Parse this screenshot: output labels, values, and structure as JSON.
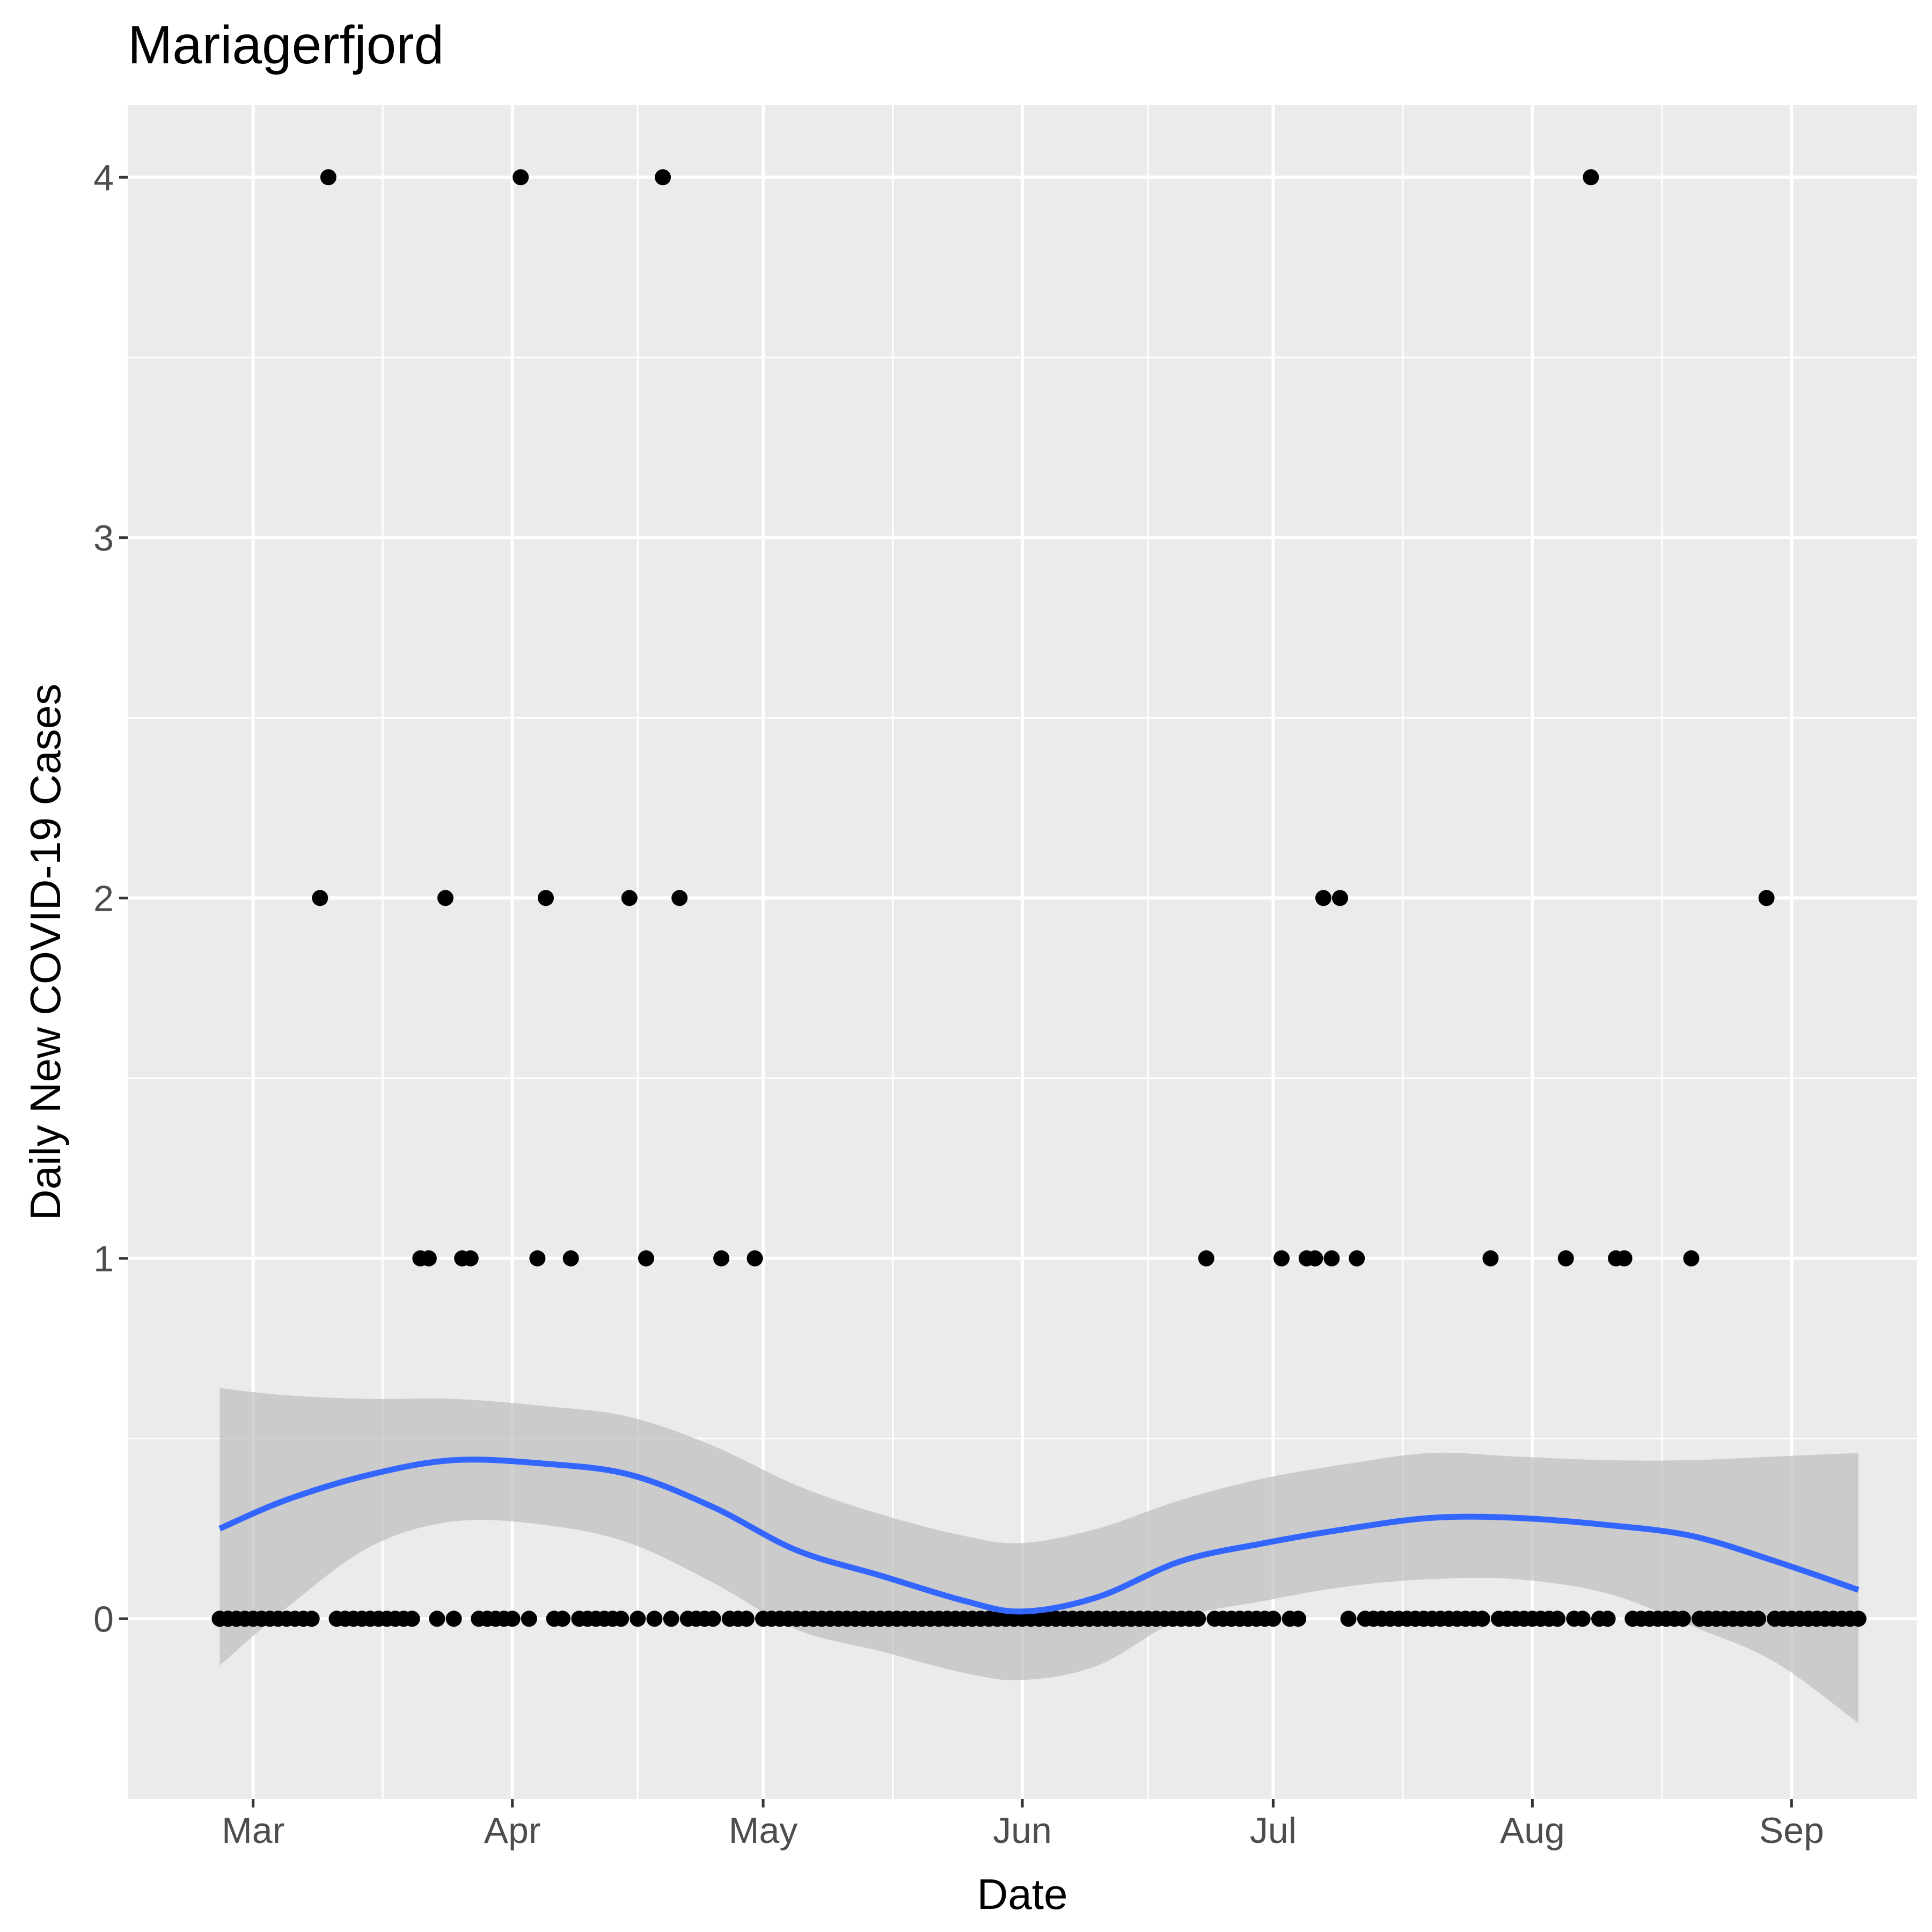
{
  "chart_data": {
    "type": "scatter",
    "title": "Mariagerfjord",
    "xlabel": "Date",
    "ylabel": "Daily New COVID-19 Cases",
    "x_ticks": [
      "Mar",
      "Apr",
      "May",
      "Jun",
      "Jul",
      "Aug",
      "Sep"
    ],
    "x_tick_dates": [
      "2020-03-01",
      "2020-04-01",
      "2020-05-01",
      "2020-06-01",
      "2020-07-01",
      "2020-08-01",
      "2020-09-01"
    ],
    "y_ticks": [
      "0",
      "1",
      "2",
      "3",
      "4"
    ],
    "y_tick_values": [
      0,
      1,
      2,
      3,
      4
    ],
    "xlim": [
      "2020-02-15",
      "2020-09-16"
    ],
    "ylim": [
      -0.5,
      4.2
    ],
    "grid": true,
    "point_color": "#000000",
    "smooth_color": "#3366ff",
    "ribbon_color": "#bebebe",
    "panel_color": "#ebebeb",
    "points_nonzero": [
      {
        "x": "2020-03-09",
        "y": 2
      },
      {
        "x": "2020-03-10",
        "y": 4
      },
      {
        "x": "2020-03-21",
        "y": 1
      },
      {
        "x": "2020-03-22",
        "y": 1
      },
      {
        "x": "2020-03-24",
        "y": 2
      },
      {
        "x": "2020-03-26",
        "y": 1
      },
      {
        "x": "2020-03-27",
        "y": 1
      },
      {
        "x": "2020-04-02",
        "y": 4
      },
      {
        "x": "2020-04-04",
        "y": 1
      },
      {
        "x": "2020-04-05",
        "y": 2
      },
      {
        "x": "2020-04-08",
        "y": 1
      },
      {
        "x": "2020-04-15",
        "y": 2
      },
      {
        "x": "2020-04-17",
        "y": 1
      },
      {
        "x": "2020-04-19",
        "y": 4
      },
      {
        "x": "2020-04-21",
        "y": 2
      },
      {
        "x": "2020-04-26",
        "y": 1
      },
      {
        "x": "2020-04-30",
        "y": 1
      },
      {
        "x": "2020-06-23",
        "y": 1
      },
      {
        "x": "2020-07-02",
        "y": 1
      },
      {
        "x": "2020-07-05",
        "y": 1
      },
      {
        "x": "2020-07-06",
        "y": 1
      },
      {
        "x": "2020-07-07",
        "y": 2
      },
      {
        "x": "2020-07-08",
        "y": 1
      },
      {
        "x": "2020-07-09",
        "y": 2
      },
      {
        "x": "2020-07-11",
        "y": 1
      },
      {
        "x": "2020-07-27",
        "y": 1
      },
      {
        "x": "2020-08-05",
        "y": 1
      },
      {
        "x": "2020-08-08",
        "y": 4
      },
      {
        "x": "2020-08-11",
        "y": 1
      },
      {
        "x": "2020-08-12",
        "y": 1
      },
      {
        "x": "2020-08-20",
        "y": 1
      },
      {
        "x": "2020-08-29",
        "y": 2
      }
    ],
    "zero_range": [
      "2020-02-26",
      "2020-09-09"
    ],
    "smooth": {
      "x": [
        "2020-02-26",
        "2020-03-05",
        "2020-03-15",
        "2020-03-25",
        "2020-04-05",
        "2020-04-15",
        "2020-04-25",
        "2020-05-05",
        "2020-05-15",
        "2020-05-25",
        "2020-06-01",
        "2020-06-10",
        "2020-06-20",
        "2020-06-30",
        "2020-07-10",
        "2020-07-20",
        "2020-07-30",
        "2020-08-10",
        "2020-08-20",
        "2020-08-30",
        "2020-09-09"
      ],
      "y": [
        0.25,
        0.33,
        0.4,
        0.44,
        0.43,
        0.4,
        0.31,
        0.19,
        0.12,
        0.05,
        0.02,
        0.06,
        0.16,
        0.21,
        0.25,
        0.28,
        0.28,
        0.26,
        0.23,
        0.16,
        0.08
      ],
      "lower": [
        -0.13,
        0.03,
        0.2,
        0.27,
        0.26,
        0.21,
        0.1,
        -0.03,
        -0.09,
        -0.15,
        -0.17,
        -0.13,
        0.0,
        0.05,
        0.09,
        0.11,
        0.11,
        0.07,
        -0.02,
        -0.12,
        -0.29
      ],
      "upper": [
        0.64,
        0.62,
        0.61,
        0.61,
        0.59,
        0.56,
        0.48,
        0.37,
        0.29,
        0.23,
        0.21,
        0.25,
        0.33,
        0.39,
        0.43,
        0.46,
        0.45,
        0.44,
        0.44,
        0.45,
        0.46
      ]
    }
  }
}
